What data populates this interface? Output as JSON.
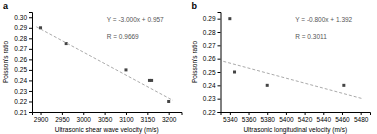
{
  "chart_data": [
    {
      "type": "scatter",
      "title": "a",
      "xlabel": "Ultrasonic shear wave velocity (m/s)",
      "ylabel": "Poisson's ratio",
      "series": [
        {
          "type": "scatter",
          "marker": "square",
          "color": "#444444",
          "x": [
            2900,
            2960,
            3100,
            3155,
            3160,
            3200
          ],
          "values": [
            0.29,
            0.275,
            0.25,
            0.24,
            0.24,
            0.22
          ]
        },
        {
          "type": "line",
          "line_style": "dashed",
          "color": "#aaaaaa",
          "x": [
            2890,
            3210
          ],
          "values": [
            0.291,
            0.221
          ]
        }
      ],
      "annotations": [
        {
          "text": "Y = -3.000x + 0.957",
          "color": "#555555"
        },
        {
          "text": "R = 0.9669",
          "color": "#555555"
        }
      ],
      "xlim": [
        2880,
        3230
      ],
      "ylim": [
        0.21,
        0.305
      ],
      "xticks": [
        2900,
        2950,
        3000,
        3050,
        3100,
        3150,
        3200
      ],
      "yticks": [
        0.21,
        0.22,
        0.23,
        0.24,
        0.25,
        0.26,
        0.27,
        0.28,
        0.29,
        {
          "value": 0.3,
          "label": "0.30"
        }
      ]
    },
    {
      "type": "scatter",
      "title": "b",
      "xlabel": "Ultrasonic longitudinal velocity (m/s)",
      "ylabel": "Poisson's ratio",
      "series": [
        {
          "type": "scatter",
          "marker": "square",
          "color": "#444444",
          "x": [
            5340,
            5345,
            5380,
            5462
          ],
          "values": [
            0.29,
            0.25,
            0.24,
            0.24
          ]
        },
        {
          "type": "line",
          "line_style": "dashed",
          "color": "#aaaaaa",
          "x": [
            5333,
            5482
          ],
          "values": [
            0.258,
            0.23
          ]
        }
      ],
      "annotations": [
        {
          "text": "Y = -0.800x + 1.392",
          "color": "#555555"
        },
        {
          "text": "R = 0.3011",
          "color": "#555555"
        }
      ],
      "xlim": [
        5330,
        5490
      ],
      "ylim": [
        0.22,
        0.295
      ],
      "xticks": [
        5340,
        5360,
        5380,
        5400,
        5420,
        5440,
        5460,
        5480
      ],
      "yticks": [
        0.22,
        0.23,
        0.24,
        0.25,
        0.26,
        0.27,
        0.28,
        0.29
      ]
    }
  ]
}
